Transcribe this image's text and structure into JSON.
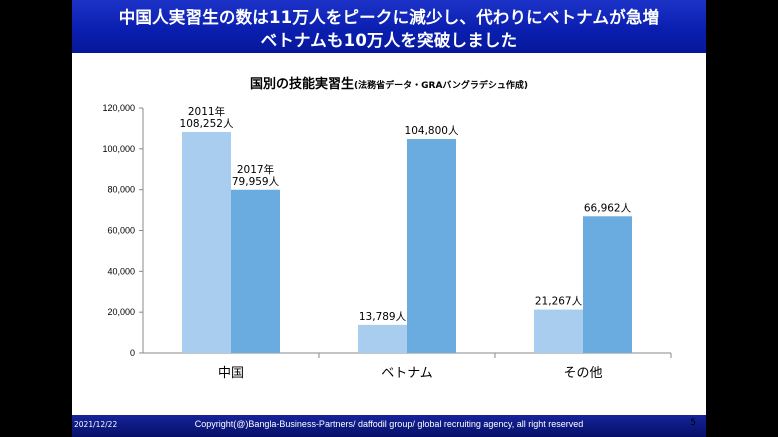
{
  "slide": {
    "title_line1": "中国人実習生の数は11万人をピークに減少し、代わりにベトナムが急増",
    "title_line2": "ベトナムも10万人を突破しました",
    "page_number": "5"
  },
  "footer": {
    "date": "2021/12/22",
    "copyright": "Copyright(@)Bangla-Business-Partners/ daffodil group/ global recruiting agency, all right reserved"
  },
  "colors": {
    "header": "#0a1fb0",
    "bar_2011": "#a9cdee",
    "bar_2017": "#6aabe0",
    "footer": "#0b1478"
  },
  "chart_data": {
    "type": "bar",
    "title": "国別の技能実習生",
    "subtitle": "(法務省データ・GRAバングラデシュ作成)",
    "categories": [
      "中国",
      "ベトナム",
      "その他"
    ],
    "series": [
      {
        "name": "2011年",
        "values": [
          108252,
          13789,
          21267
        ]
      },
      {
        "name": "2017年",
        "values": [
          79959,
          104800,
          66962
        ]
      }
    ],
    "data_labels": [
      [
        "2011年\n108,252人",
        "13,789人",
        "21,267人"
      ],
      [
        "2017年\n79,959人",
        "104,800人",
        "66,962人"
      ]
    ],
    "yticks": [
      "0",
      "20,000",
      "40,000",
      "60,000",
      "80,000",
      "100,000",
      "120,000"
    ],
    "ylim": [
      0,
      120000
    ],
    "grid": false,
    "legend": "none"
  }
}
